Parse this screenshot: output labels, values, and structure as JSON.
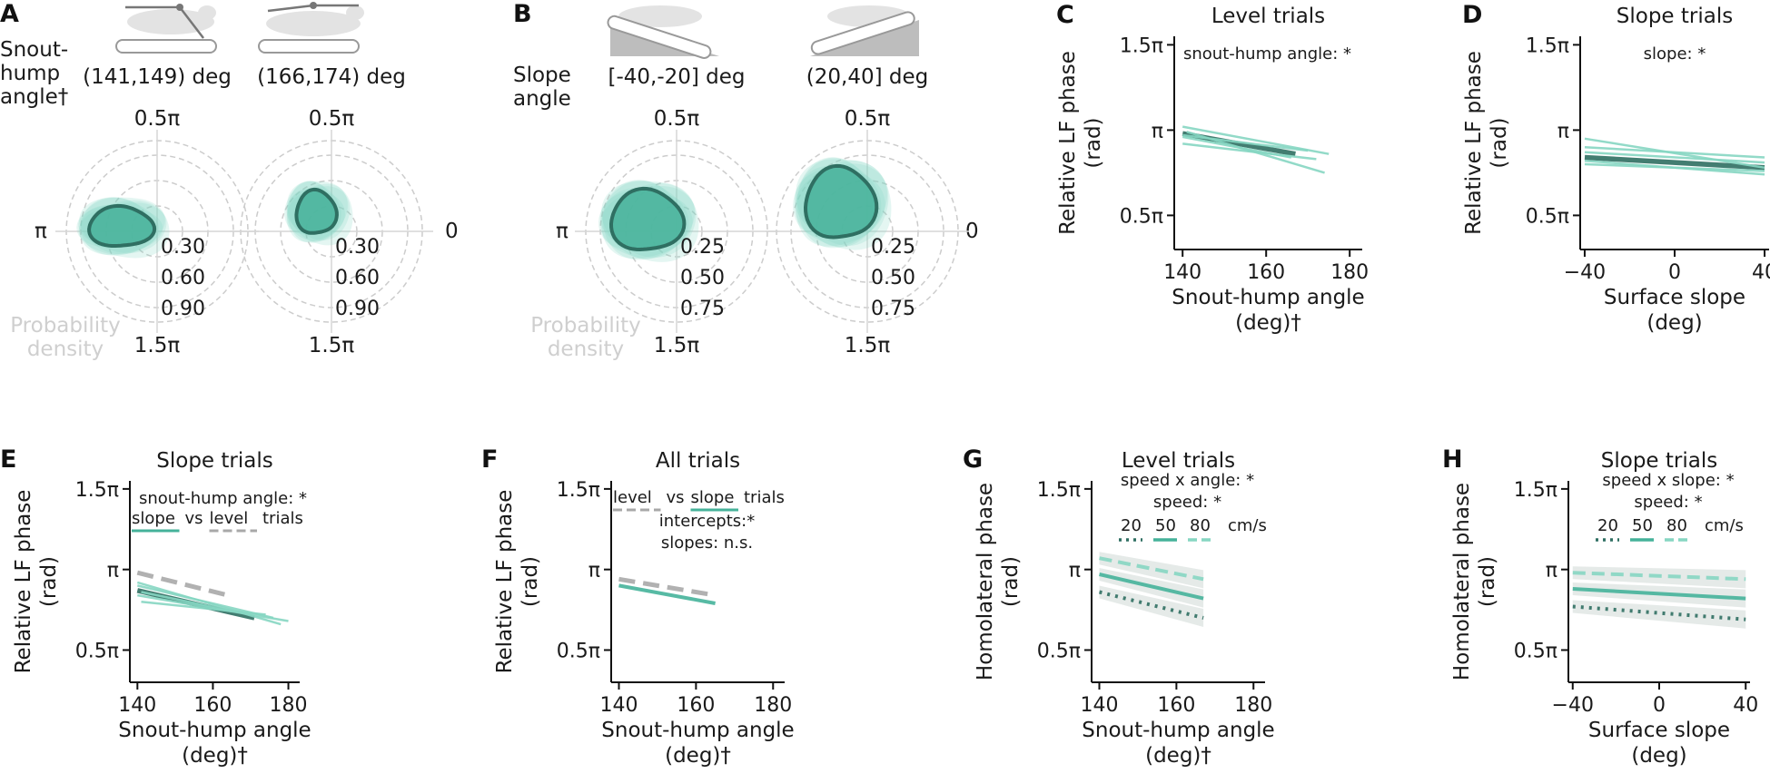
{
  "colors": {
    "dark": "#2f6f62",
    "mid": "#45b29a",
    "light": "#86d6c2",
    "grey": "#a8a8a8",
    "ring": "#cccccc",
    "band": "#cfd8d6"
  },
  "panelA": {
    "label": "A",
    "row_label": "Snout-\nhump\nangle†",
    "conditions": [
      "(141,149) deg",
      "(166,174) deg"
    ],
    "angles": {
      "top": "0.5π",
      "left": "π",
      "right": "0",
      "bottom": "1.5π"
    },
    "rings": [
      "0.30",
      "0.60",
      "0.90"
    ],
    "density_label": "Probability\ndensity"
  },
  "panelB": {
    "label": "B",
    "row_label": "Slope\nangle",
    "conditions": [
      "[-40,-20] deg",
      "(20,40] deg"
    ],
    "angles": {
      "top": "0.5π",
      "left": "π",
      "right": "0",
      "bottom": "1.5π"
    },
    "rings": [
      "0.25",
      "0.50",
      "0.75"
    ],
    "density_label": "Probability\ndensity"
  },
  "chart_data": [
    {
      "panel": "C",
      "type": "line",
      "title": "Level trials",
      "annotation": "snout-hump angle: *",
      "xlabel": "Snout-hump angle\n(deg)†",
      "ylabel": "Relative LF phase\n(rad)",
      "xticks": [
        "140",
        "160",
        "180"
      ],
      "yticks": [
        "0.5π",
        "π",
        "1.5π"
      ],
      "xlim": [
        138,
        183
      ],
      "ylim": [
        0.3,
        1.55
      ],
      "series": [
        {
          "role": "mean",
          "x": [
            140,
            167
          ],
          "y": [
            0.98,
            0.86
          ]
        },
        {
          "role": "subject",
          "x": [
            140,
            175
          ],
          "y": [
            1.02,
            0.86
          ]
        },
        {
          "role": "subject",
          "x": [
            140,
            172
          ],
          "y": [
            0.92,
            0.83
          ]
        },
        {
          "role": "subject",
          "x": [
            140,
            170
          ],
          "y": [
            0.97,
            0.88
          ]
        },
        {
          "role": "subject",
          "x": [
            141,
            174
          ],
          "y": [
            0.99,
            0.75
          ]
        },
        {
          "role": "subject",
          "x": [
            140,
            166
          ],
          "y": [
            0.96,
            0.84
          ]
        }
      ]
    },
    {
      "panel": "D",
      "type": "line",
      "title": "Slope trials",
      "annotation": "slope: *",
      "xlabel": "Surface slope\n(deg)",
      "ylabel": "Relative LF phase\n(rad)",
      "xticks": [
        "−40",
        "0",
        "40"
      ],
      "yticks": [
        "0.5π",
        "π",
        "1.5π"
      ],
      "xlim": [
        -42,
        42
      ],
      "ylim": [
        0.3,
        1.55
      ],
      "series": [
        {
          "role": "mean",
          "x": [
            -40,
            40
          ],
          "y": [
            0.84,
            0.78
          ]
        },
        {
          "role": "subject",
          "x": [
            -40,
            40
          ],
          "y": [
            0.95,
            0.78
          ]
        },
        {
          "role": "subject",
          "x": [
            -40,
            40
          ],
          "y": [
            0.9,
            0.84
          ]
        },
        {
          "role": "subject",
          "x": [
            -40,
            40
          ],
          "y": [
            0.82,
            0.74
          ]
        },
        {
          "role": "subject",
          "x": [
            -40,
            40
          ],
          "y": [
            0.8,
            0.76
          ]
        },
        {
          "role": "subject",
          "x": [
            -40,
            40
          ],
          "y": [
            0.87,
            0.81
          ]
        }
      ]
    },
    {
      "panel": "E",
      "type": "line",
      "title": "Slope trials",
      "annotation": "snout-hump angle: *",
      "legend": [
        "slope",
        "vs",
        "level",
        "trials"
      ],
      "xlabel": "Snout-hump angle\n(deg)†",
      "ylabel": "Relative LF phase\n(rad)",
      "xticks": [
        "140",
        "160",
        "180"
      ],
      "yticks": [
        "0.5π",
        "π",
        "1.5π"
      ],
      "xlim": [
        138,
        183
      ],
      "ylim": [
        0.3,
        1.55
      ],
      "series": [
        {
          "role": "level",
          "x": [
            140,
            164
          ],
          "y": [
            0.98,
            0.84
          ]
        },
        {
          "role": "mean",
          "x": [
            140,
            171
          ],
          "y": [
            0.87,
            0.7
          ]
        },
        {
          "role": "subject",
          "x": [
            140,
            176
          ],
          "y": [
            0.9,
            0.7
          ]
        },
        {
          "role": "subject",
          "x": [
            140,
            180
          ],
          "y": [
            0.84,
            0.68
          ]
        },
        {
          "role": "subject",
          "x": [
            141,
            174
          ],
          "y": [
            0.8,
            0.72
          ]
        },
        {
          "role": "subject",
          "x": [
            140,
            178
          ],
          "y": [
            0.92,
            0.66
          ]
        },
        {
          "role": "subject",
          "x": [
            141,
            170
          ],
          "y": [
            0.86,
            0.72
          ]
        }
      ]
    },
    {
      "panel": "F",
      "type": "line",
      "title": "All trials",
      "legend": [
        "level",
        "vs",
        "slope",
        "trials"
      ],
      "annotation_lines": [
        "intercepts:*",
        "slopes: n.s."
      ],
      "xlabel": "Snout-hump angle\n(deg)†",
      "ylabel": "Relative LF phase\n(rad)",
      "xticks": [
        "140",
        "160",
        "180"
      ],
      "yticks": [
        "0.5π",
        "π",
        "1.5π"
      ],
      "xlim": [
        138,
        183
      ],
      "ylim": [
        0.3,
        1.55
      ],
      "series": [
        {
          "role": "level",
          "x": [
            140,
            165
          ],
          "y": [
            0.94,
            0.84
          ]
        },
        {
          "role": "slope",
          "x": [
            140,
            165
          ],
          "y": [
            0.9,
            0.79
          ]
        }
      ]
    },
    {
      "panel": "G",
      "type": "line",
      "title": "Level trials",
      "annotation_lines": [
        "speed x angle: *",
        "speed: *"
      ],
      "speed_legend": {
        "values": [
          "20",
          "50",
          "80"
        ],
        "unit": "cm/s"
      },
      "xlabel": "Snout-hump angle\n(deg)†",
      "ylabel": "Homolateral phase\n(rad)",
      "xticks": [
        "140",
        "160",
        "180"
      ],
      "yticks": [
        "0.5π",
        "π",
        "1.5π"
      ],
      "xlim": [
        138,
        183
      ],
      "ylim": [
        0.3,
        1.55
      ],
      "series": [
        {
          "name": "80",
          "x": [
            140,
            167
          ],
          "y": [
            1.07,
            0.94
          ]
        },
        {
          "name": "50",
          "x": [
            140,
            167
          ],
          "y": [
            0.97,
            0.82
          ]
        },
        {
          "name": "20",
          "x": [
            140,
            167
          ],
          "y": [
            0.86,
            0.7
          ]
        }
      ]
    },
    {
      "panel": "H",
      "type": "line",
      "title": "Slope trials",
      "annotation_lines": [
        "speed x slope: *",
        "speed: *"
      ],
      "speed_legend": {
        "values": [
          "20",
          "50",
          "80"
        ],
        "unit": "cm/s"
      },
      "xlabel": "Surface slope\n(deg)",
      "ylabel": "Homolateral phase\n(rad)",
      "xticks": [
        "−40",
        "0",
        "40"
      ],
      "yticks": [
        "0.5π",
        "π",
        "1.5π"
      ],
      "xlim": [
        -42,
        42
      ],
      "ylim": [
        0.3,
        1.55
      ],
      "series": [
        {
          "name": "80",
          "x": [
            -40,
            40
          ],
          "y": [
            0.98,
            0.94
          ]
        },
        {
          "name": "50",
          "x": [
            -40,
            40
          ],
          "y": [
            0.88,
            0.82
          ]
        },
        {
          "name": "20",
          "x": [
            -40,
            40
          ],
          "y": [
            0.77,
            0.69
          ]
        }
      ]
    }
  ]
}
